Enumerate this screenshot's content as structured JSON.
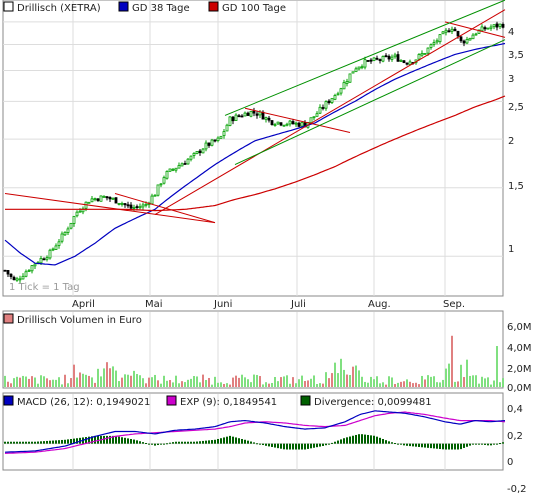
{
  "colors": {
    "candle_up": "#00a000",
    "candle_down": "#000000",
    "gd38": "#0000c0",
    "gd100": "#cc0000",
    "channel_green": "#009000",
    "trend_red": "#cc0000",
    "vol_up": "#80e080",
    "vol_down": "#e08080",
    "macd": "#0000c0",
    "exp": "#cc00cc",
    "divergence": "#006000",
    "grid": "#dddddd",
    "shade": "#c8c8c8"
  },
  "chart_data": [
    {
      "type": "candlestick",
      "legend": [
        {
          "label": "Drillisch (XETRA)",
          "color": "#ffffff"
        },
        {
          "label": "GD 38 Tage",
          "color": "#0000c0"
        },
        {
          "label": "GD 100 Tage",
          "color": "#cc0000"
        }
      ],
      "xlabels": [
        "April",
        "Mai",
        "Juni",
        "Juli",
        "Aug.",
        "Sep."
      ],
      "yticks": [
        "4",
        "3,5",
        "3",
        "2,5",
        "2",
        "1,5",
        "1"
      ],
      "ylim": [
        0.8,
        4.5
      ],
      "scale": "log",
      "footnote": "1 Tick = 1 Tag",
      "price_anchors": [
        [
          0,
          0.92
        ],
        [
          10,
          0.86
        ],
        [
          18,
          0.9
        ],
        [
          30,
          0.96
        ],
        [
          45,
          1.02
        ],
        [
          60,
          1.15
        ],
        [
          72,
          1.3
        ],
        [
          85,
          1.4
        ],
        [
          100,
          1.42
        ],
        [
          115,
          1.38
        ],
        [
          125,
          1.33
        ],
        [
          140,
          1.35
        ],
        [
          150,
          1.45
        ],
        [
          160,
          1.62
        ],
        [
          175,
          1.72
        ],
        [
          190,
          1.82
        ],
        [
          200,
          1.92
        ],
        [
          215,
          2.0
        ],
        [
          225,
          2.25
        ],
        [
          235,
          2.3
        ],
        [
          245,
          2.35
        ],
        [
          255,
          2.32
        ],
        [
          265,
          2.22
        ],
        [
          280,
          2.2
        ],
        [
          300,
          2.18
        ],
        [
          310,
          2.3
        ],
        [
          320,
          2.45
        ],
        [
          330,
          2.6
        ],
        [
          340,
          2.8
        ],
        [
          350,
          3.05
        ],
        [
          360,
          3.15
        ],
        [
          375,
          3.2
        ],
        [
          390,
          3.25
        ],
        [
          400,
          3.15
        ],
        [
          410,
          3.2
        ],
        [
          420,
          3.35
        ],
        [
          430,
          3.55
        ],
        [
          440,
          3.75
        ],
        [
          448,
          3.9
        ],
        [
          455,
          3.55
        ],
        [
          462,
          3.6
        ],
        [
          470,
          3.75
        ],
        [
          480,
          3.85
        ],
        [
          490,
          3.9
        ],
        [
          500,
          3.95
        ]
      ],
      "gd38_anchors": [
        [
          0,
          1.1
        ],
        [
          15,
          1.02
        ],
        [
          30,
          0.96
        ],
        [
          50,
          0.95
        ],
        [
          70,
          1.0
        ],
        [
          90,
          1.08
        ],
        [
          110,
          1.18
        ],
        [
          130,
          1.25
        ],
        [
          150,
          1.32
        ],
        [
          170,
          1.45
        ],
        [
          190,
          1.58
        ],
        [
          210,
          1.72
        ],
        [
          230,
          1.85
        ],
        [
          250,
          1.98
        ],
        [
          270,
          2.05
        ],
        [
          290,
          2.12
        ],
        [
          310,
          2.2
        ],
        [
          330,
          2.35
        ],
        [
          350,
          2.5
        ],
        [
          370,
          2.68
        ],
        [
          390,
          2.85
        ],
        [
          410,
          3.0
        ],
        [
          430,
          3.15
        ],
        [
          450,
          3.3
        ],
        [
          470,
          3.4
        ],
        [
          490,
          3.48
        ],
        [
          500,
          3.52
        ]
      ],
      "gd100_anchors": [
        [
          120,
          1.32
        ],
        [
          150,
          1.31
        ],
        [
          180,
          1.32
        ],
        [
          210,
          1.35
        ],
        [
          230,
          1.4
        ],
        [
          250,
          1.44
        ],
        [
          270,
          1.49
        ],
        [
          290,
          1.55
        ],
        [
          310,
          1.62
        ],
        [
          330,
          1.7
        ],
        [
          350,
          1.8
        ],
        [
          370,
          1.9
        ],
        [
          390,
          2.0
        ],
        [
          410,
          2.1
        ],
        [
          430,
          2.2
        ],
        [
          450,
          2.3
        ],
        [
          470,
          2.42
        ],
        [
          490,
          2.52
        ],
        [
          500,
          2.58
        ]
      ]
    },
    {
      "type": "bar",
      "legend": [
        {
          "label": "Drillisch Volumen in Euro",
          "color": "#e08080"
        }
      ],
      "yticks": [
        "6,0M",
        "4,0M",
        "2,0M",
        "0,0M"
      ],
      "ylim": [
        0,
        6.5
      ]
    },
    {
      "type": "line",
      "legend": [
        {
          "label": "MACD (26, 12): 0,1949021",
          "color": "#0000c0"
        },
        {
          "label": "EXP (9): 0,1849541",
          "color": "#cc00cc"
        },
        {
          "label": "Divergence: 0,0099481",
          "color": "#006000"
        }
      ],
      "yticks": [
        "0,4",
        "0,2",
        "0",
        "-0,2"
      ],
      "ylim": [
        -0.2,
        0.4
      ],
      "macd_anchors": [
        [
          0,
          -0.07
        ],
        [
          30,
          -0.06
        ],
        [
          60,
          -0.02
        ],
        [
          90,
          0.06
        ],
        [
          110,
          0.1
        ],
        [
          130,
          0.1
        ],
        [
          150,
          0.08
        ],
        [
          170,
          0.11
        ],
        [
          190,
          0.12
        ],
        [
          210,
          0.14
        ],
        [
          225,
          0.18
        ],
        [
          240,
          0.19
        ],
        [
          260,
          0.17
        ],
        [
          280,
          0.14
        ],
        [
          300,
          0.12
        ],
        [
          320,
          0.13
        ],
        [
          340,
          0.18
        ],
        [
          355,
          0.24
        ],
        [
          370,
          0.27
        ],
        [
          385,
          0.26
        ],
        [
          400,
          0.25
        ],
        [
          420,
          0.22
        ],
        [
          440,
          0.18
        ],
        [
          455,
          0.16
        ],
        [
          470,
          0.19
        ],
        [
          485,
          0.18
        ],
        [
          500,
          0.19
        ]
      ],
      "exp_anchors": [
        [
          0,
          -0.08
        ],
        [
          30,
          -0.07
        ],
        [
          60,
          -0.04
        ],
        [
          90,
          0.02
        ],
        [
          110,
          0.06
        ],
        [
          130,
          0.08
        ],
        [
          150,
          0.09
        ],
        [
          170,
          0.1
        ],
        [
          190,
          0.11
        ],
        [
          210,
          0.12
        ],
        [
          225,
          0.14
        ],
        [
          240,
          0.17
        ],
        [
          260,
          0.18
        ],
        [
          280,
          0.17
        ],
        [
          300,
          0.15
        ],
        [
          320,
          0.14
        ],
        [
          340,
          0.15
        ],
        [
          355,
          0.19
        ],
        [
          370,
          0.23
        ],
        [
          385,
          0.25
        ],
        [
          400,
          0.26
        ],
        [
          420,
          0.24
        ],
        [
          440,
          0.21
        ],
        [
          455,
          0.19
        ],
        [
          470,
          0.19
        ],
        [
          485,
          0.19
        ],
        [
          500,
          0.18
        ]
      ]
    }
  ]
}
